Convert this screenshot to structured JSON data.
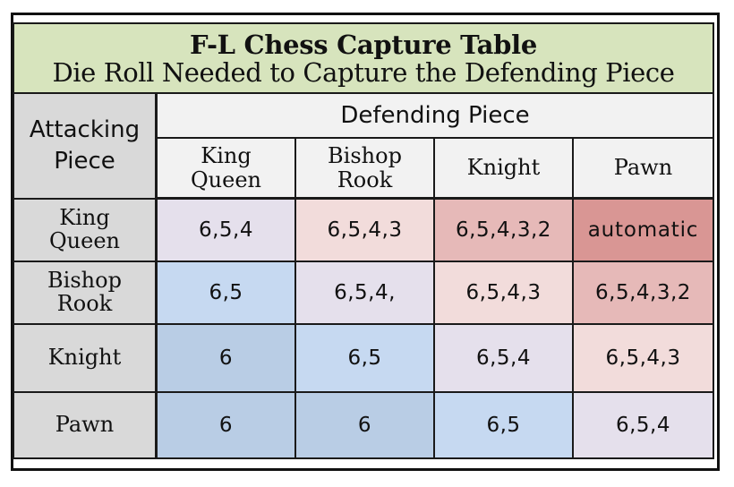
{
  "table": {
    "title": "F-L Chess Capture Table",
    "subtitle": "Die Roll Needed to Capture the Defending Piece",
    "attacking_header": [
      "Attacking",
      "Piece"
    ],
    "defending_header": "Defending Piece",
    "columns": [
      {
        "lines": [
          "King",
          "Queen"
        ]
      },
      {
        "lines": [
          "Bishop",
          "Rook"
        ]
      },
      {
        "lines": [
          "Knight"
        ]
      },
      {
        "lines": [
          "Pawn"
        ]
      }
    ],
    "rows": [
      {
        "lines": [
          "King",
          "Queen"
        ],
        "values": [
          "6,5,4",
          "6,5,4,3",
          "6,5,4,3,2",
          "automatic"
        ]
      },
      {
        "lines": [
          "Bishop",
          "Rook"
        ],
        "values": [
          "6,5",
          "6,5,4,",
          "6,5,4,3",
          "6,5,4,3,2"
        ]
      },
      {
        "lines": [
          "Knight"
        ],
        "values": [
          "6",
          "6,5",
          "6,5,4",
          "6,5,4,3"
        ]
      },
      {
        "lines": [
          "Pawn"
        ],
        "values": [
          "6",
          "6",
          "6,5",
          "6,5,4"
        ]
      }
    ]
  },
  "colors": {
    "title_bg": "#d7e4bd",
    "header_grey": "#d9d9d9",
    "header_white": "#f2f2f2",
    "cell_colors": [
      [
        "#e5e0ec",
        "#f2dcdb",
        "#e6b9b8",
        "#d99694"
      ],
      [
        "#c6d9f1",
        "#e5e0ec",
        "#f2dcdb",
        "#e6b9b8"
      ],
      [
        "#b9cde5",
        "#c6d9f1",
        "#e5e0ec",
        "#f2dcdb"
      ],
      [
        "#b9cde5",
        "#b9cde5",
        "#c6d9f1",
        "#e5e0ec"
      ]
    ]
  }
}
